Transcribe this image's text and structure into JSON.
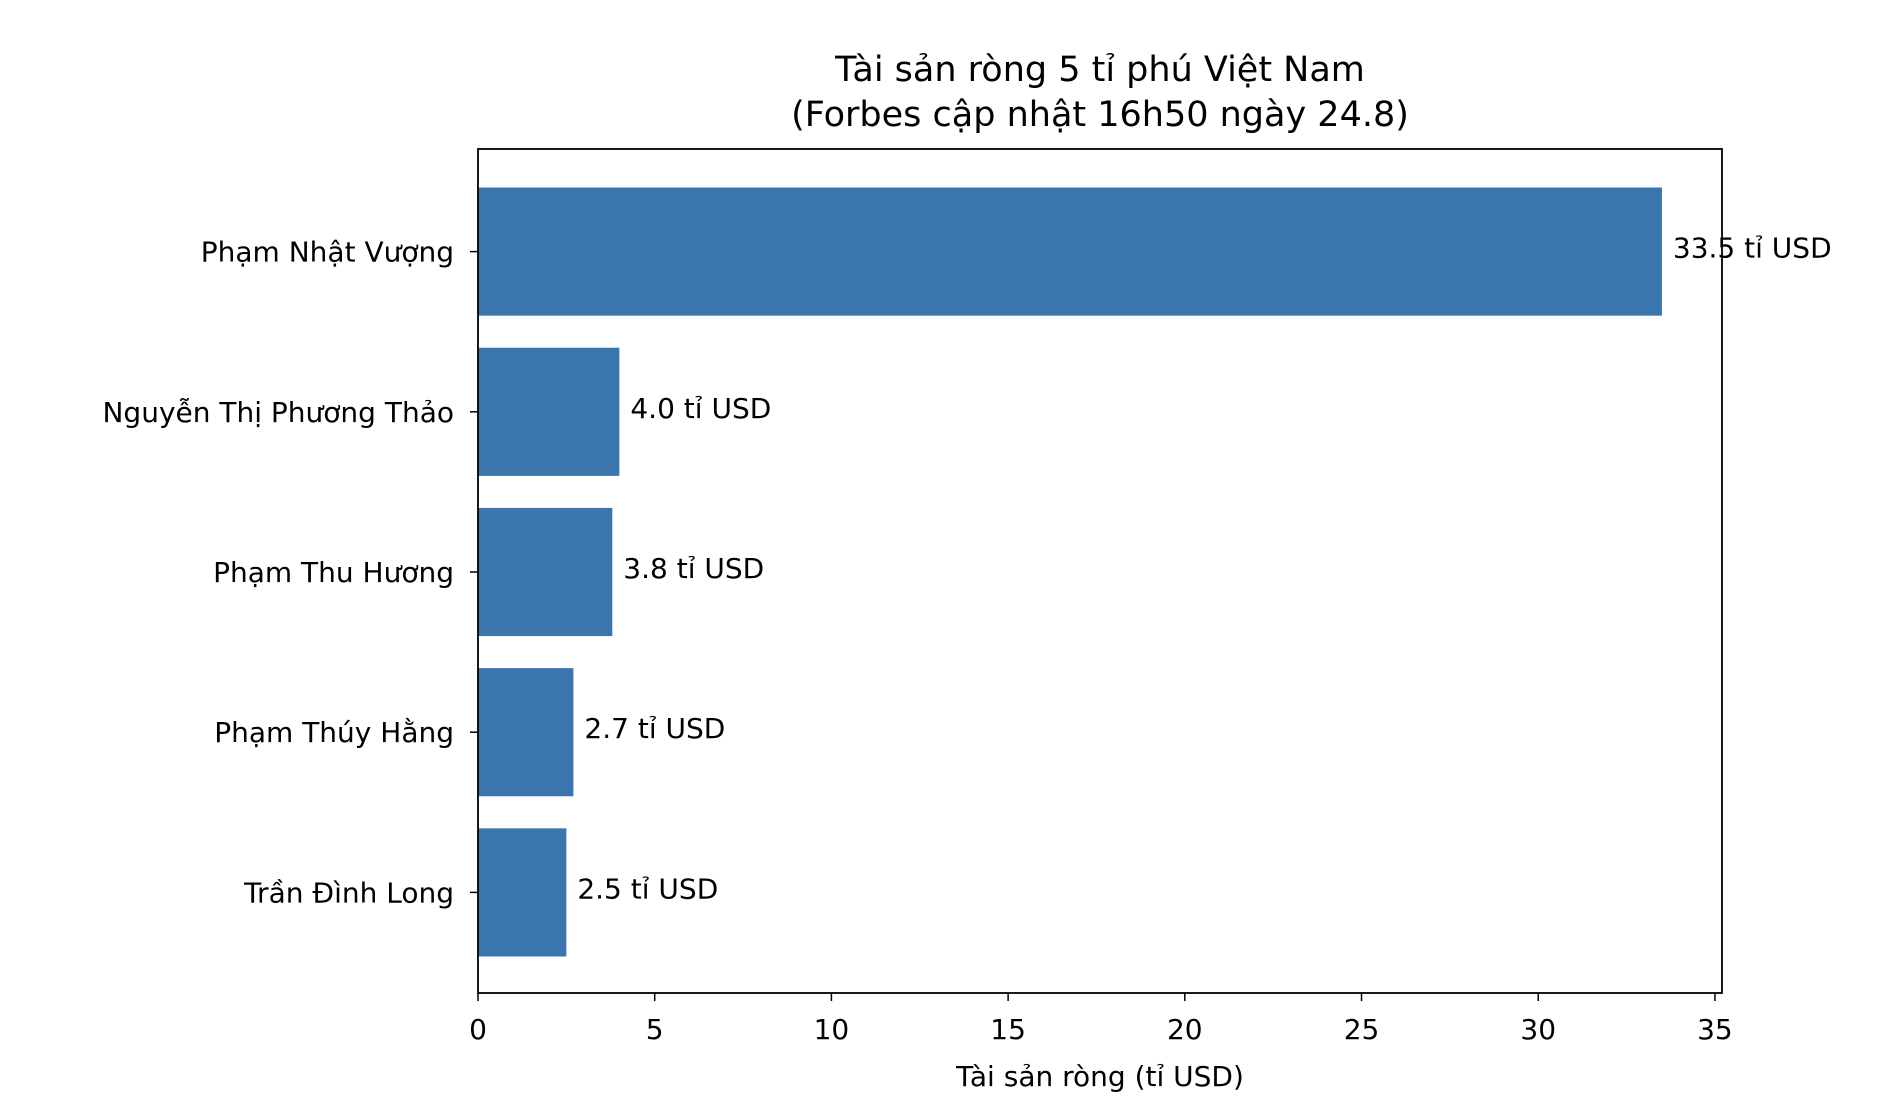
{
  "chart_data": {
    "type": "barh",
    "title": "Tài sản ròng 5 tỉ phú Việt Nam",
    "subtitle": "(Forbes cập nhật 16h50 ngày 24.8)",
    "x_label": "Tài sản ròng (tỉ USD)",
    "categories": [
      "Phạm Nhật Vượng",
      "Nguyễn Thị Phương Thảo",
      "Phạm Thu Hương",
      "Phạm Thúy Hằng",
      "Trần Đình Long"
    ],
    "values": [
      33.5,
      4.0,
      3.8,
      2.7,
      2.5
    ],
    "value_labels": [
      "33.5 tỉ USD",
      "4.0 tỉ USD",
      "3.8 tỉ USD",
      "2.7 tỉ USD",
      "2.5 tỉ USD"
    ],
    "color": "#3a76ad",
    "xlim": [
      0,
      35.2
    ],
    "xticks": [
      0,
      5,
      10,
      15,
      20,
      25,
      30,
      35
    ],
    "grid": false
  }
}
